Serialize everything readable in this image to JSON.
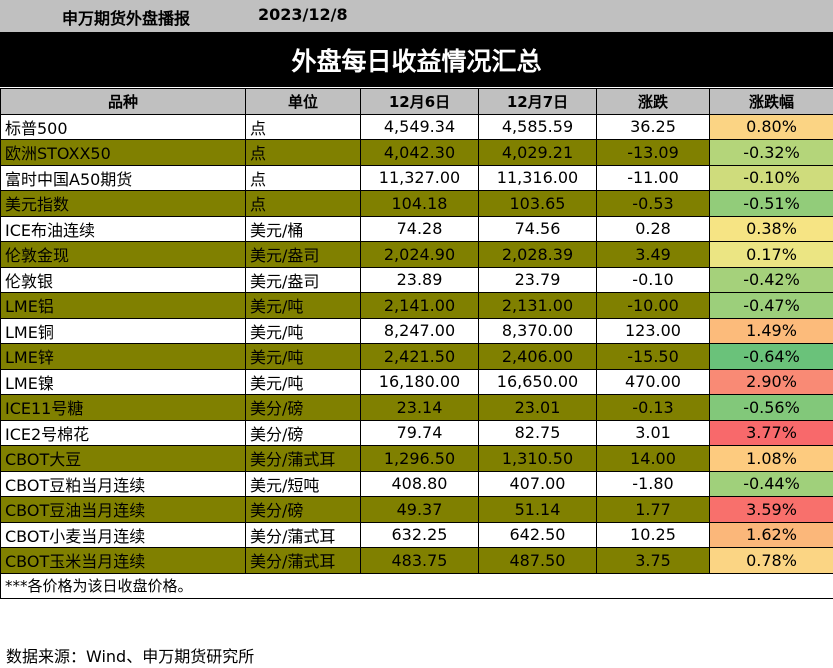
{
  "header": {
    "brand": "申万期货外盘播报",
    "date": "2023/12/8",
    "title": "外盘每日收益情况汇总"
  },
  "table": {
    "columns": [
      "品种",
      "单位",
      "12月6日",
      "12月7日",
      "涨跌",
      "涨跌幅"
    ],
    "rows": [
      {
        "name": "标普500",
        "unit": "点",
        "d1": "4,549.34",
        "d2": "4,585.59",
        "chg": "36.25",
        "pct": "0.80%",
        "pct_color": "#fbd484",
        "row_style": "white"
      },
      {
        "name": "欧洲STOXX50",
        "unit": "点",
        "d1": "4,042.30",
        "d2": "4,029.21",
        "chg": "-13.09",
        "pct": "-0.32%",
        "pct_color": "#b4d57a",
        "row_style": "olive"
      },
      {
        "name": "富时中国A50期货",
        "unit": "点",
        "d1": "11,327.00",
        "d2": "11,316.00",
        "chg": "-11.00",
        "pct": "-0.10%",
        "pct_color": "#cfdc7c",
        "row_style": "white"
      },
      {
        "name": "美元指数",
        "unit": "点",
        "d1": "104.18",
        "d2": "103.65",
        "chg": "-0.53",
        "pct": "-0.51%",
        "pct_color": "#92cc7a",
        "row_style": "olive"
      },
      {
        "name": "ICE布油连续",
        "unit": "美元/桶",
        "d1": "74.28",
        "d2": "74.56",
        "chg": "0.28",
        "pct": "0.38%",
        "pct_color": "#f6e484",
        "row_style": "white"
      },
      {
        "name": "伦敦金现",
        "unit": "美元/盎司",
        "d1": "2,024.90",
        "d2": "2,028.39",
        "chg": "3.49",
        "pct": "0.17%",
        "pct_color": "#ebe583",
        "row_style": "olive"
      },
      {
        "name": "伦敦银",
        "unit": "美元/盎司",
        "d1": "23.89",
        "d2": "23.79",
        "chg": "-0.10",
        "pct": "-0.42%",
        "pct_color": "#a5d17b",
        "row_style": "white"
      },
      {
        "name": "LME铝",
        "unit": "美元/吨",
        "d1": "2,141.00",
        "d2": "2,131.00",
        "chg": "-10.00",
        "pct": "-0.47%",
        "pct_color": "#9ccf7b",
        "row_style": "olive"
      },
      {
        "name": "LME铜",
        "unit": "美元/吨",
        "d1": "8,247.00",
        "d2": "8,370.00",
        "chg": "123.00",
        "pct": "1.49%",
        "pct_color": "#fcbb7b",
        "row_style": "white"
      },
      {
        "name": "LME锌",
        "unit": "美元/吨",
        "d1": "2,421.50",
        "d2": "2,406.00",
        "chg": "-15.50",
        "pct": "-0.64%",
        "pct_color": "#6ac27a",
        "row_style": "olive"
      },
      {
        "name": "LME镍",
        "unit": "美元/吨",
        "d1": "16,180.00",
        "d2": "16,650.00",
        "chg": "470.00",
        "pct": "2.90%",
        "pct_color": "#f98a75",
        "row_style": "white"
      },
      {
        "name": "ICE11号糖",
        "unit": "美分/磅",
        "d1": "23.14",
        "d2": "23.01",
        "chg": "-0.13",
        "pct": "-0.56%",
        "pct_color": "#82c87a",
        "row_style": "olive"
      },
      {
        "name": "ICE2号棉花",
        "unit": "美分/磅",
        "d1": "79.74",
        "d2": "82.75",
        "chg": "3.01",
        "pct": "3.77%",
        "pct_color": "#f8696b",
        "row_style": "white"
      },
      {
        "name": "CBOT大豆",
        "unit": "美分/蒲式耳",
        "d1": "1,296.50",
        "d2": "1,310.50",
        "chg": "14.00",
        "pct": "1.08%",
        "pct_color": "#fdcb7f",
        "row_style": "olive"
      },
      {
        "name": "CBOT豆粕当月连续",
        "unit": "美元/短吨",
        "d1": "408.80",
        "d2": "407.00",
        "chg": "-1.80",
        "pct": "-0.44%",
        "pct_color": "#a0d07b",
        "row_style": "white"
      },
      {
        "name": "CBOT豆油当月连续",
        "unit": "美分/磅",
        "d1": "49.37",
        "d2": "51.14",
        "chg": "1.77",
        "pct": "3.59%",
        "pct_color": "#f8706c",
        "row_style": "olive"
      },
      {
        "name": "CBOT小麦当月连续",
        "unit": "美分/蒲式耳",
        "d1": "632.25",
        "d2": "642.50",
        "chg": "10.25",
        "pct": "1.62%",
        "pct_color": "#fbb77a",
        "row_style": "white"
      },
      {
        "name": "CBOT玉米当月连续",
        "unit": "美分/蒲式耳",
        "d1": "483.75",
        "d2": "487.50",
        "chg": "3.75",
        "pct": "0.78%",
        "pct_color": "#fbd584",
        "row_style": "olive"
      }
    ]
  },
  "footnote": "***各价格为该日收盘价格。",
  "source": "数据来源：Wind、申万期货研究所"
}
